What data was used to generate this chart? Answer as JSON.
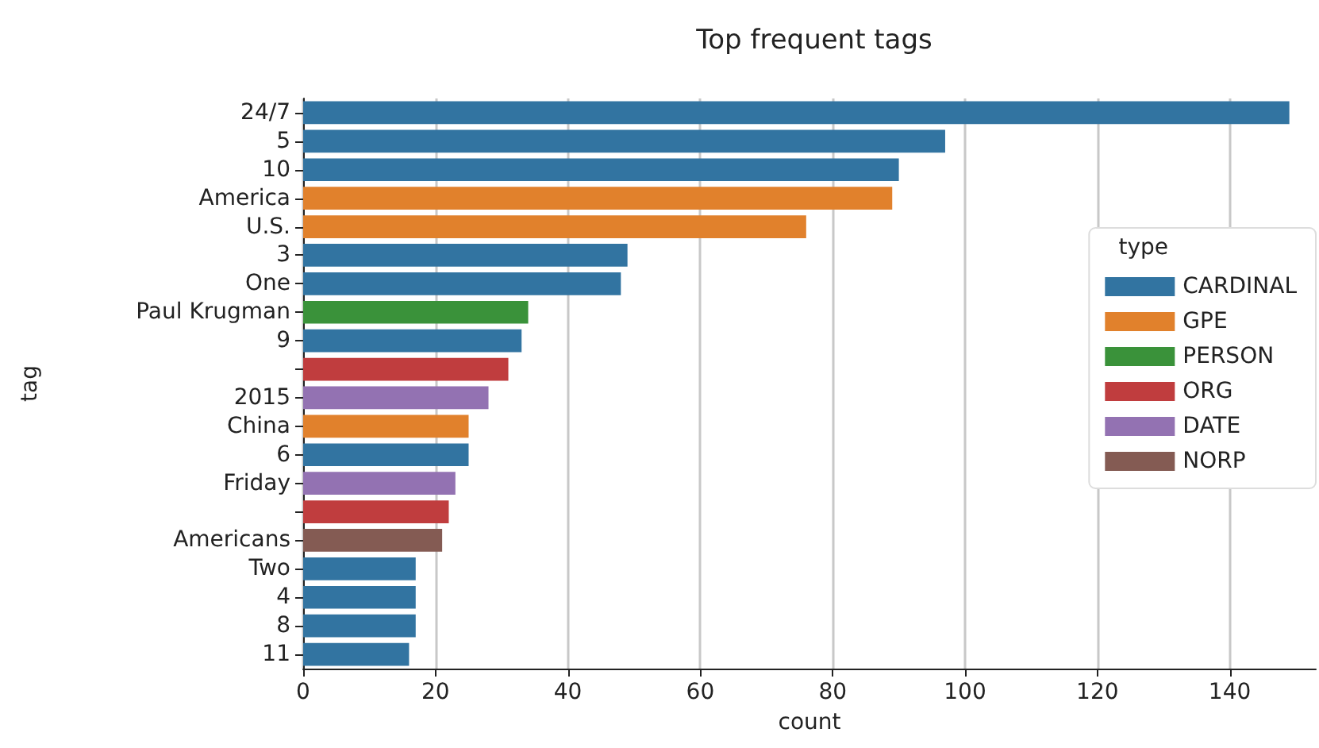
{
  "chart_data": {
    "type": "bar",
    "orientation": "horizontal",
    "stacked": true,
    "title": "Top frequent tags",
    "xlabel": "count",
    "ylabel": "tag",
    "legend_title": "type",
    "legend": "right",
    "grid": "x",
    "categories": [
      "24/7",
      "5",
      "10",
      "America",
      "U.S.",
      "3",
      "One",
      "Paul Krugman",
      "9",
      null,
      "2015",
      "China",
      "6",
      "Friday",
      null,
      "Americans",
      "Two",
      "4",
      "8",
      "11"
    ],
    "xlim": [
      0,
      153
    ],
    "xticks": [
      0,
      20,
      40,
      60,
      80,
      100,
      120,
      140
    ],
    "series": [
      {
        "name": "CARDINAL",
        "color": "#3274a1",
        "values": [
          149,
          97,
          90,
          null,
          null,
          49,
          48,
          null,
          33,
          null,
          null,
          null,
          25,
          null,
          null,
          null,
          17,
          17,
          17,
          16
        ]
      },
      {
        "name": "GPE",
        "color": "#e1812c",
        "values": [
          null,
          null,
          null,
          89,
          76,
          null,
          null,
          null,
          null,
          null,
          null,
          25,
          null,
          null,
          null,
          null,
          null,
          null,
          null,
          null
        ]
      },
      {
        "name": "PERSON",
        "color": "#3a923a",
        "values": [
          null,
          null,
          null,
          null,
          null,
          null,
          null,
          34,
          null,
          null,
          null,
          null,
          null,
          null,
          null,
          null,
          null,
          null,
          null,
          null
        ]
      },
      {
        "name": "ORG",
        "color": "#c03d3e",
        "values": [
          null,
          null,
          null,
          null,
          null,
          null,
          null,
          null,
          null,
          31,
          null,
          null,
          null,
          null,
          22,
          null,
          null,
          null,
          null,
          null
        ]
      },
      {
        "name": "DATE",
        "color": "#9372b2",
        "values": [
          null,
          null,
          null,
          null,
          null,
          null,
          null,
          null,
          null,
          null,
          28,
          null,
          null,
          23,
          null,
          null,
          null,
          null,
          null,
          null
        ]
      },
      {
        "name": "NORP",
        "color": "#845b53",
        "values": [
          null,
          null,
          null,
          null,
          null,
          null,
          null,
          null,
          null,
          null,
          null,
          null,
          null,
          null,
          null,
          21,
          null,
          null,
          null,
          null
        ]
      }
    ]
  }
}
